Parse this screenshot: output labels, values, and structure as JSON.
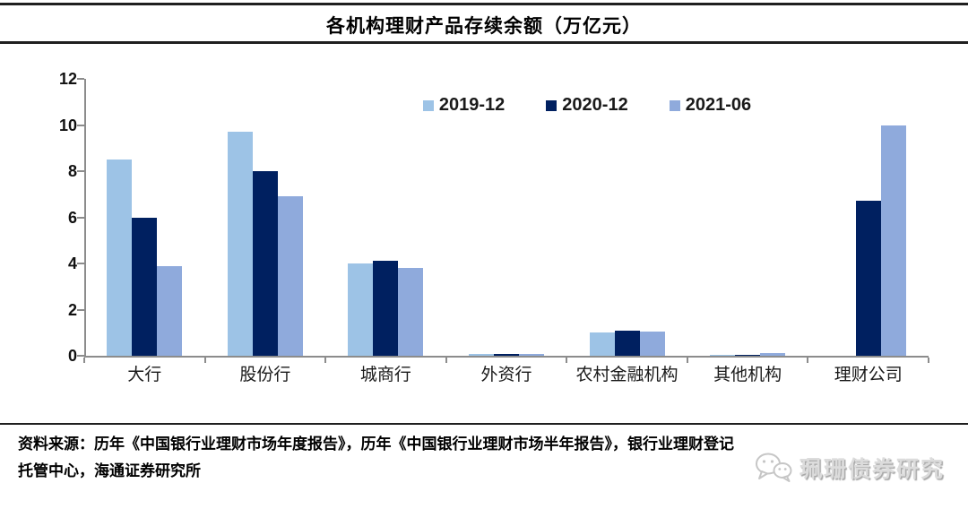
{
  "page": {
    "title": "各机构理财产品存续余额（万亿元）",
    "source": {
      "line1": "资料来源：历年《中国银行业理财市场年度报告》，历年《中国银行业理财市场半年报告》，银行业理财登记",
      "line2": "托管中心，海通证券研究所"
    },
    "watermark": {
      "icon": "wechat-icon",
      "text": "珮珊债券研究"
    }
  },
  "chart_data": {
    "type": "bar",
    "title": "各机构理财产品存续余额（万亿元）",
    "categories": [
      "大行",
      "股份行",
      "城商行",
      "外资行",
      "农村金融机构",
      "其他机构",
      "理财公司"
    ],
    "series": [
      {
        "name": "2019-12",
        "color": "#9DC3E6",
        "values": [
          8.5,
          9.7,
          4.0,
          0.08,
          1.0,
          0.04,
          0
        ]
      },
      {
        "name": "2020-12",
        "color": "#002060",
        "values": [
          6.0,
          8.0,
          4.1,
          0.07,
          1.1,
          0.03,
          6.7
        ]
      },
      {
        "name": "2021-06",
        "color": "#8FAADC",
        "values": [
          3.9,
          6.9,
          3.8,
          0.09,
          1.05,
          0.1,
          10.0
        ]
      }
    ],
    "ylim": [
      0,
      12
    ],
    "ytick_step": 2,
    "yticks": [
      0,
      2,
      4,
      6,
      8,
      10,
      12
    ],
    "grid": false,
    "legend_position": "top-center",
    "axis_color": "#8c8c8c"
  }
}
